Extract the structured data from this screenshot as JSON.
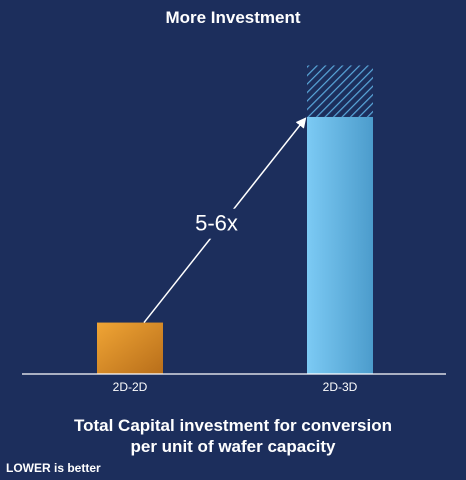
{
  "title": "More Investment",
  "caption_line1": "Total Capital investment for conversion",
  "caption_line2": "per unit of wafer capacity",
  "note": "LOWER is better",
  "chart_data": {
    "type": "bar",
    "categories": [
      "2D-2D",
      "2D-3D"
    ],
    "values": [
      1,
      5
    ],
    "upper_range": [
      5,
      6
    ],
    "annotation": "5-6x",
    "ylim": [
      0,
      6.3
    ],
    "grid": false,
    "colors": {
      "bar_2d2d": "#e0962e",
      "bar_2d3d": "#6cbdee",
      "range_hatch": "#1c2e5c",
      "axis": "#ffffff",
      "arrow": "#ffffff"
    }
  }
}
